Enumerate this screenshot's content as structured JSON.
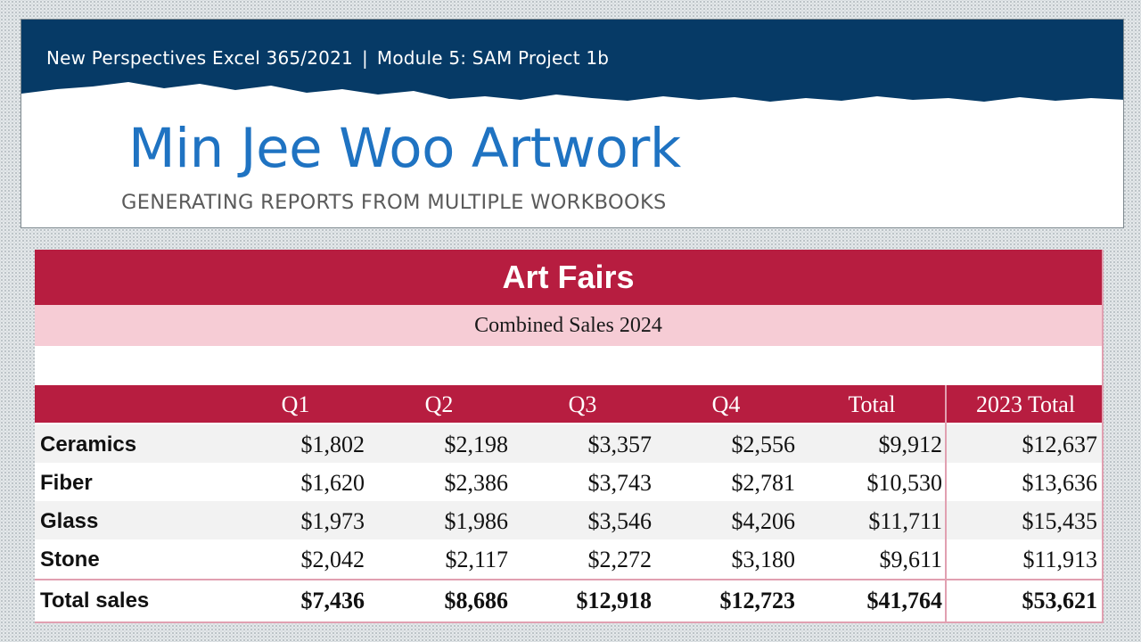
{
  "banner": {
    "course": "New Perspectives Excel 365/2021",
    "separator": "|",
    "module": "Module 5: SAM Project 1b",
    "title": "Min Jee Woo Artwork",
    "subtitle": "GENERATING REPORTS FROM MULTIPLE WORKBOOKS"
  },
  "sheet": {
    "title": "Art Fairs",
    "subtitle": "Combined Sales 2024",
    "headers": [
      "Q1",
      "Q2",
      "Q3",
      "Q4",
      "Total",
      "2023 Total"
    ],
    "rows": [
      {
        "label": "Ceramics",
        "values": [
          "$1,802",
          "$2,198",
          "$3,357",
          "$2,556",
          "$9,912",
          "$12,637"
        ]
      },
      {
        "label": "Fiber",
        "values": [
          "$1,620",
          "$2,386",
          "$3,743",
          "$2,781",
          "$10,530",
          "$13,636"
        ]
      },
      {
        "label": "Glass",
        "values": [
          "$1,973",
          "$1,986",
          "$3,546",
          "$4,206",
          "$11,711",
          "$15,435"
        ]
      },
      {
        "label": "Stone",
        "values": [
          "$2,042",
          "$2,117",
          "$2,272",
          "$3,180",
          "$9,611",
          "$11,913"
        ]
      },
      {
        "label": "Total sales",
        "values": [
          "$7,436",
          "$8,686",
          "$12,918",
          "$12,723",
          "$41,764",
          "$53,621"
        ]
      }
    ]
  },
  "colors": {
    "banner_navy": "#063a66",
    "title_blue": "#1f73c2",
    "header_crimson": "#b71d40",
    "subtitle_pink": "#f6ccd5"
  }
}
